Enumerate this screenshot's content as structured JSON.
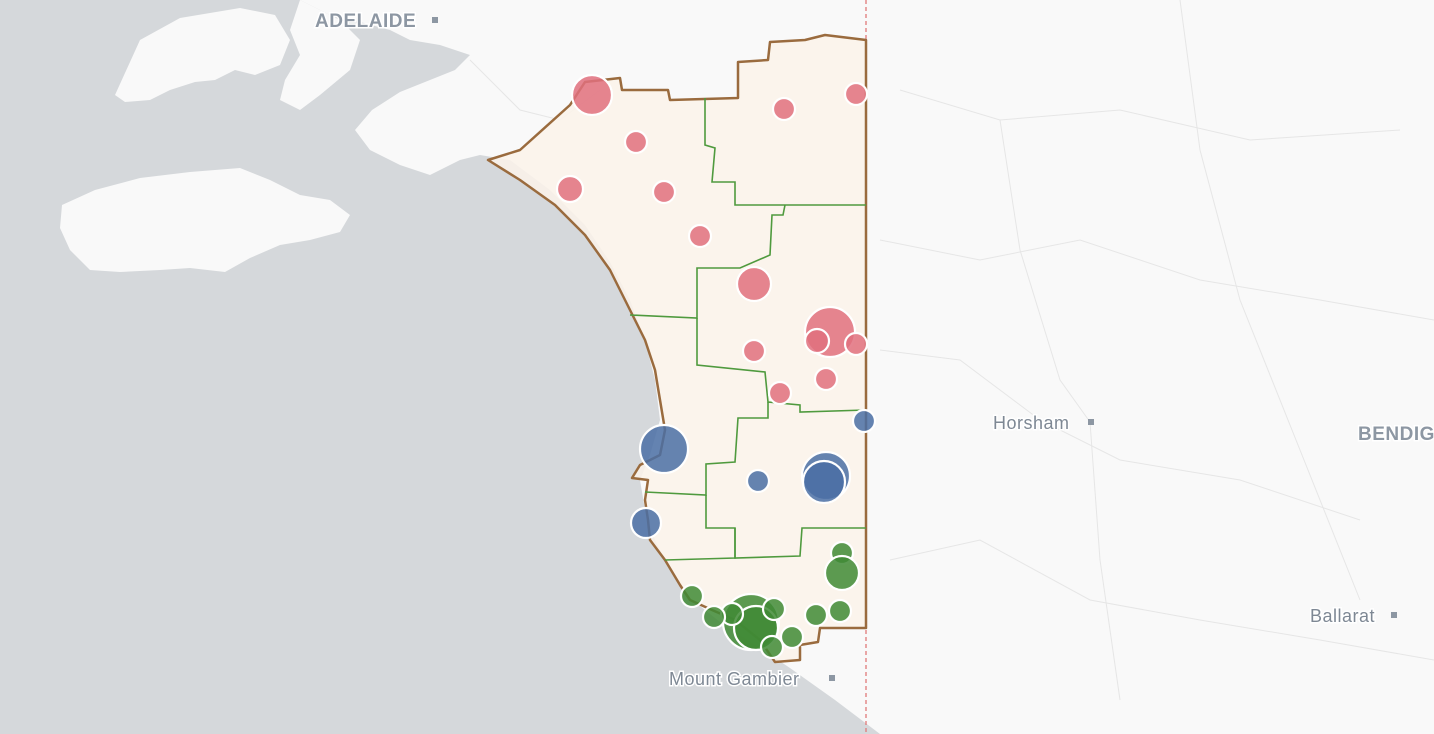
{
  "map": {
    "place_labels": [
      "ADELAIDE",
      "Horsham",
      "BENDIG",
      "Ballarat",
      "Mount Gambier"
    ],
    "colors": {
      "water": "#d5d8db",
      "land": "#f9f9f9",
      "region_fill": "#fbf3ea",
      "region_border": "#9a6b3e",
      "subregion_border": "#4f9a3e",
      "state_border": "#e07a7a",
      "red_bubble": "#e0707e",
      "blue_bubble": "#4a6fa5",
      "green_bubble": "#3f8a35"
    },
    "bubble_groups": [
      "red",
      "blue",
      "green"
    ]
  }
}
